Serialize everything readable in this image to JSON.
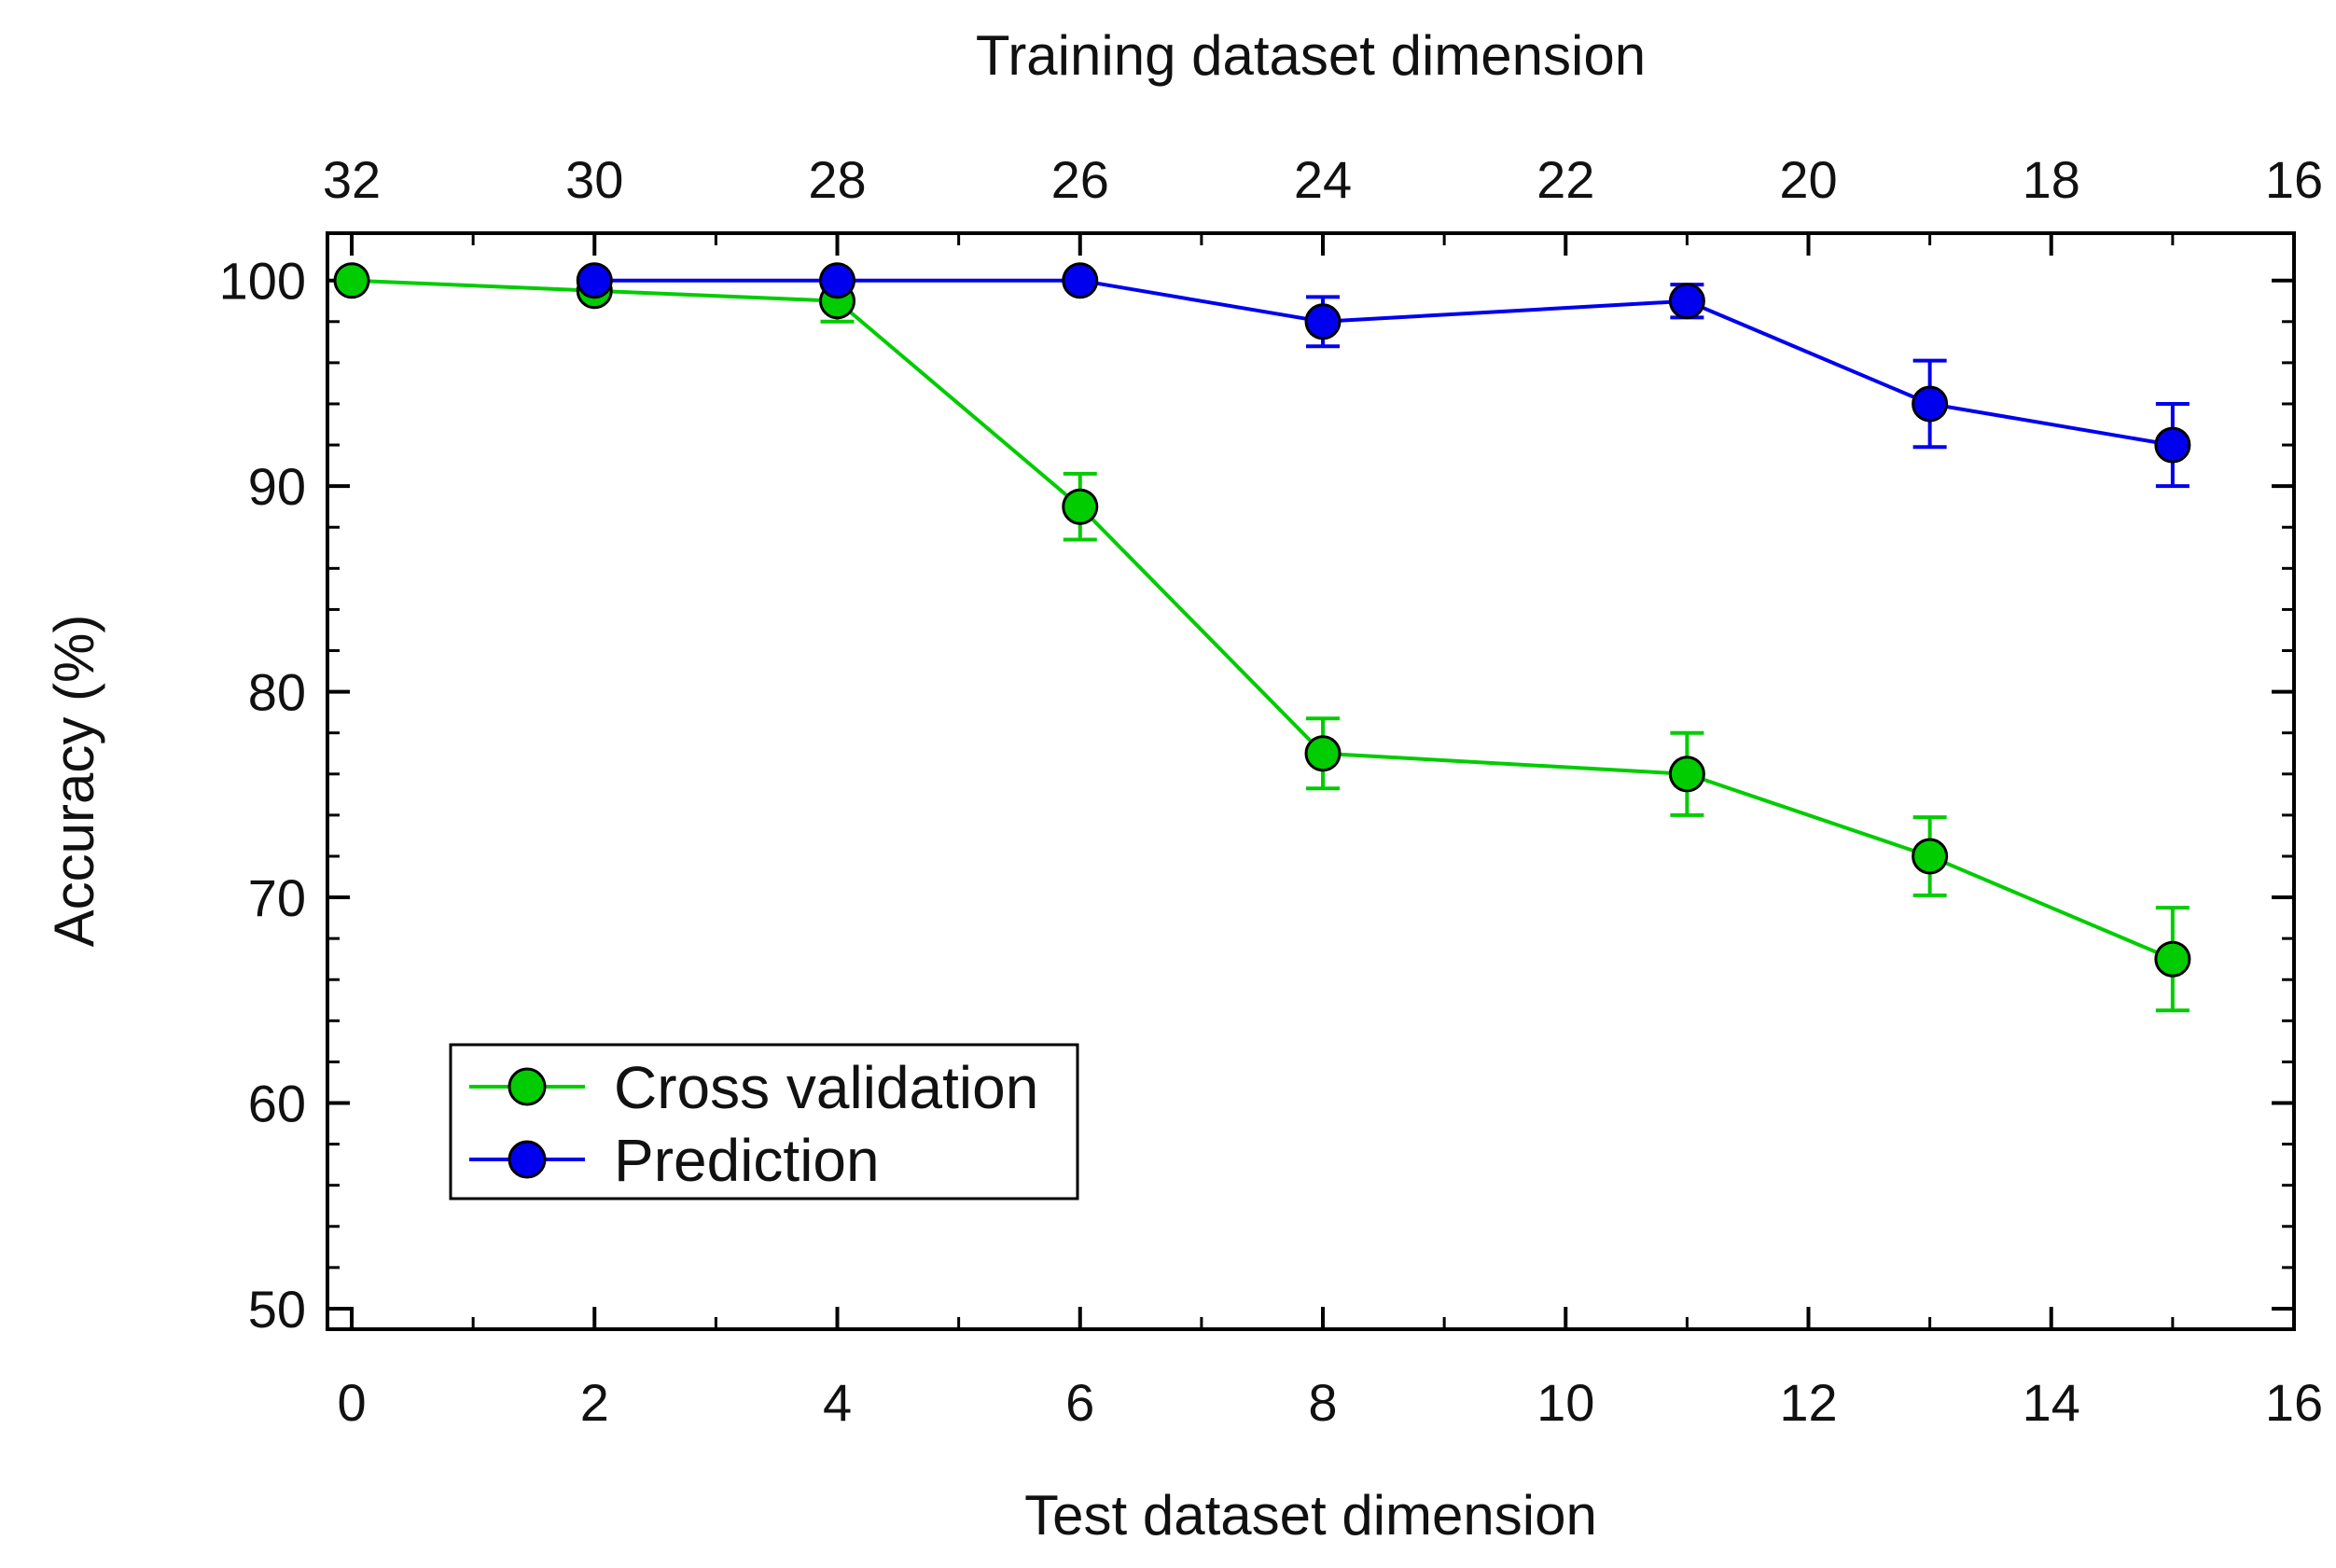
{
  "chart_data": {
    "type": "line",
    "title": "",
    "xlabel": "Test dataset dimension",
    "x2label": "Training dataset dimension",
    "ylabel": "Accuracy (%)",
    "xlim": [
      -0.2,
      16
    ],
    "ylim": [
      49,
      102.3
    ],
    "x_ticks": [
      0,
      2,
      4,
      6,
      8,
      10,
      12,
      14,
      16
    ],
    "x_tick_labels": [
      "0",
      "2",
      "4",
      "6",
      "8",
      "10",
      "12",
      "14",
      "16"
    ],
    "x2_ticks": [
      0,
      2,
      4,
      6,
      8,
      10,
      12,
      14,
      16
    ],
    "x2_tick_labels": [
      "32",
      "30",
      "28",
      "26",
      "24",
      "22",
      "20",
      "18",
      "16"
    ],
    "y_ticks": [
      50,
      60,
      70,
      80,
      90,
      100
    ],
    "y_tick_labels": [
      "50",
      "60",
      "70",
      "80",
      "90",
      "100"
    ],
    "grid": false,
    "legend_position": "bottom-left",
    "series": [
      {
        "name": "Cross validation",
        "color": "#00cc00",
        "points": [
          {
            "x": 0,
            "y": 100,
            "err": 0
          },
          {
            "x": 2,
            "y": 99.5,
            "err": 0
          },
          {
            "x": 4,
            "y": 99,
            "err": 1
          },
          {
            "x": 6,
            "y": 89,
            "err": 1.6
          },
          {
            "x": 8,
            "y": 77,
            "err": 1.7
          },
          {
            "x": 11,
            "y": 76,
            "err": 2
          },
          {
            "x": 13,
            "y": 72,
            "err": 1.9
          },
          {
            "x": 15,
            "y": 67,
            "err": 2.5
          }
        ]
      },
      {
        "name": "Prediction",
        "color": "#0000ee",
        "points": [
          {
            "x": 2,
            "y": 100,
            "err": 0
          },
          {
            "x": 4,
            "y": 100,
            "err": 0
          },
          {
            "x": 6,
            "y": 100,
            "err": 0
          },
          {
            "x": 8,
            "y": 98,
            "err": 1.2
          },
          {
            "x": 11,
            "y": 99,
            "err": 0.8
          },
          {
            "x": 13,
            "y": 94,
            "err": 2.1
          },
          {
            "x": 15,
            "y": 92,
            "err": 2
          }
        ]
      }
    ]
  }
}
